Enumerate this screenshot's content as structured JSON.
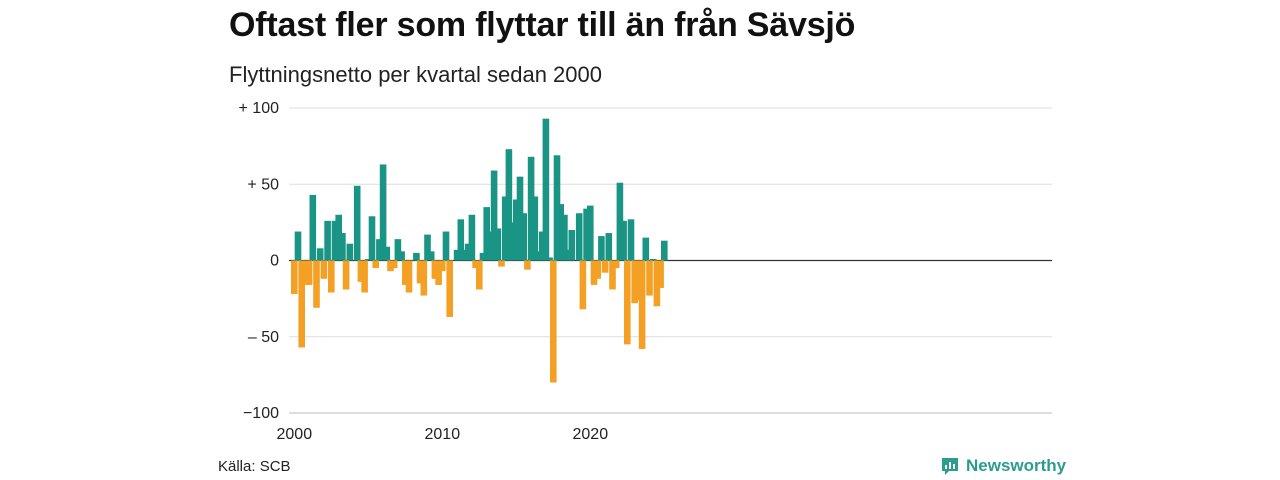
{
  "header": {
    "title": "Oftast fler som flyttar till än från Sävsjö",
    "subtitle": "Flyttningsnetto per kvartal sedan 2000"
  },
  "footer": {
    "source": "Källa: SCB",
    "brand": "Newsworthy"
  },
  "colors": {
    "positive": "#1a9485",
    "negative": "#f3a024",
    "grid": "#dddddd",
    "brand": "#2a9d8f"
  },
  "icons": {
    "brand_icon": "bar-chart-speech-bubble-icon"
  },
  "chart_data": {
    "type": "bar",
    "title": "Oftast fler som flyttar till än från Sävsjö",
    "subtitle": "Flyttningsnetto per kvartal sedan 2000",
    "xlabel": "",
    "ylabel": "",
    "ylim": [
      -100,
      100
    ],
    "y_ticks": [
      {
        "value": 100,
        "label": "+ 100"
      },
      {
        "value": 50,
        "label": "+  50"
      },
      {
        "value": 0,
        "label": "0"
      },
      {
        "value": -50,
        "label": "– 50"
      },
      {
        "value": -100,
        "label": "−100"
      }
    ],
    "x_ticks": [
      {
        "quarter_index": 0,
        "label": "2000"
      },
      {
        "quarter_index": 40,
        "label": "2010"
      },
      {
        "quarter_index": 80,
        "label": "2020"
      }
    ],
    "grid": true,
    "legend": false,
    "first_quarter": "2000 Q1",
    "values": [
      -22,
      19,
      -57,
      -16,
      -16,
      43,
      -31,
      8,
      -12,
      26,
      -21,
      26,
      30,
      18,
      -19,
      11,
      0,
      49,
      -14,
      -21,
      1,
      29,
      -5,
      14,
      63,
      9,
      -7,
      -5,
      14,
      6,
      -16,
      -21,
      0,
      5,
      -15,
      -23,
      17,
      6,
      -12,
      -16,
      -7,
      19,
      -37,
      0,
      7,
      27,
      7,
      11,
      30,
      -5,
      -19,
      5,
      35,
      19,
      59,
      21,
      -4,
      42,
      73,
      25,
      40,
      55,
      31,
      -6,
      68,
      42,
      6,
      19,
      93,
      2,
      -80,
      69,
      37,
      30,
      7,
      20,
      0,
      31,
      -32,
      34,
      36,
      -16,
      -12,
      16,
      -8,
      18,
      -19,
      -5,
      51,
      26,
      -55,
      27,
      -28,
      -26,
      -58,
      15,
      -23,
      1,
      -30,
      -18,
      13
    ]
  }
}
